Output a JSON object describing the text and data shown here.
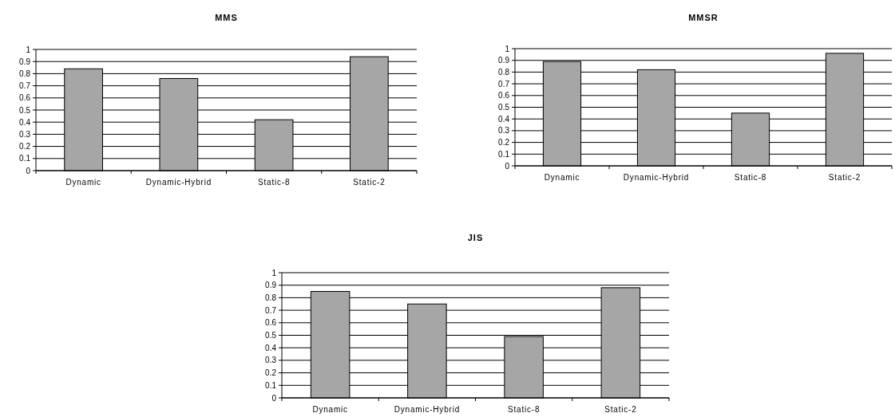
{
  "chart_data": [
    {
      "type": "bar",
      "title": "MMS",
      "categories": [
        "Dynamic",
        "Dynamic-Hybrid",
        "Static-8",
        "Static-2"
      ],
      "values": [
        0.84,
        0.76,
        0.42,
        0.94
      ],
      "color": "#a6a6a6",
      "ylim": [
        0,
        1
      ],
      "yticks": [
        0,
        0.1,
        0.2,
        0.3,
        0.4,
        0.5,
        0.6,
        0.7,
        0.8,
        0.9,
        1
      ],
      "grid": "y"
    },
    {
      "type": "bar",
      "title": "MMSR",
      "categories": [
        "Dynamic",
        "Dynamic-Hybrid",
        "Static-8",
        "Static-2"
      ],
      "values": [
        0.89,
        0.82,
        0.45,
        0.96
      ],
      "color": "#a6a6a6",
      "ylim": [
        0,
        1
      ],
      "yticks": [
        0,
        0.1,
        0.2,
        0.3,
        0.4,
        0.5,
        0.6,
        0.7,
        0.8,
        0.9,
        1
      ],
      "grid": "y"
    },
    {
      "type": "bar",
      "title": "JIS",
      "categories": [
        "Dynamic",
        "Dynamic-Hybrid",
        "Static-8",
        "Static-2"
      ],
      "values": [
        0.85,
        0.75,
        0.49,
        0.88
      ],
      "color": "#a6a6a6",
      "ylim": [
        0,
        1
      ],
      "yticks": [
        0,
        0.1,
        0.2,
        0.3,
        0.4,
        0.5,
        0.6,
        0.7,
        0.8,
        0.9,
        1
      ],
      "grid": "y"
    }
  ]
}
